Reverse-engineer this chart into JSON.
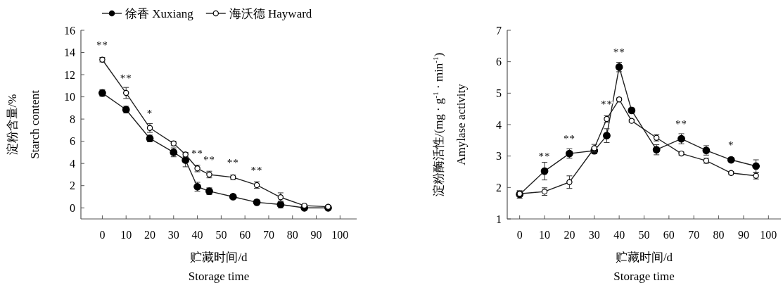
{
  "chart_data": [
    {
      "type": "line",
      "xlabel": "贮藏时间/d\nStorage time",
      "ylabel": "淀粉含量/%\nStarch content",
      "x": [
        0,
        10,
        20,
        30,
        35,
        40,
        45,
        55,
        65,
        75,
        85,
        95
      ],
      "xlim": [
        -9,
        107
      ],
      "xticks": [
        0,
        10,
        20,
        30,
        40,
        50,
        60,
        70,
        80,
        90,
        100
      ],
      "ylim": [
        -1,
        16
      ],
      "yticks": [
        0,
        2,
        4,
        6,
        8,
        10,
        12,
        14,
        16
      ],
      "marker": "circle",
      "line_style": "solid",
      "legend": "top",
      "series": [
        {
          "name": "徐香 Xuxiang",
          "color": "#000000",
          "values": [
            10.35,
            8.85,
            6.25,
            5.0,
            4.3,
            1.9,
            1.5,
            1.0,
            0.5,
            0.3,
            0.0,
            0.0
          ],
          "errors": [
            0.3,
            0.3,
            0.3,
            0.4,
            0.6,
            0.4,
            0.3,
            0.2,
            0.2,
            0.3,
            0.1,
            0.1
          ]
        },
        {
          "name": "海沃德 Hayward",
          "color": "#ffffff",
          "values": [
            13.35,
            10.35,
            7.2,
            5.8,
            4.8,
            3.55,
            3.0,
            2.75,
            2.05,
            0.95,
            0.2,
            0.1
          ],
          "errors": [
            0.2,
            0.5,
            0.4,
            0.2,
            0.2,
            0.3,
            0.3,
            0.2,
            0.3,
            0.4,
            0.1,
            0.1
          ]
        }
      ],
      "annotations": [
        {
          "text": "**",
          "x": 0,
          "y": 13.35
        },
        {
          "text": "**",
          "x": 10,
          "y": 10.35
        },
        {
          "text": "*",
          "x": 20,
          "y": 7.2
        },
        {
          "text": "**",
          "x": 40,
          "y": 3.55
        },
        {
          "text": "**",
          "x": 45,
          "y": 3.0
        },
        {
          "text": "**",
          "x": 55,
          "y": 2.75
        },
        {
          "text": "**",
          "x": 65,
          "y": 2.05
        }
      ]
    },
    {
      "type": "line",
      "xlabel": "贮藏时间/d\nStorage time",
      "ylabel": "淀粉酶活性/(mg · g$^{-1}$ · min$^{-1}$)\nAmylase activity",
      "x": [
        0,
        10,
        20,
        30,
        35,
        40,
        45,
        55,
        65,
        75,
        85,
        95
      ],
      "xlim": [
        -5,
        105
      ],
      "xticks": [
        0,
        10,
        20,
        30,
        40,
        50,
        60,
        70,
        80,
        90,
        100
      ],
      "ylim": [
        1,
        7
      ],
      "yticks": [
        1,
        2,
        3,
        4,
        5,
        6,
        7
      ],
      "marker": "circle",
      "line_style": "solid",
      "series": [
        {
          "color": "#000000",
          "values": [
            1.78,
            2.52,
            3.08,
            3.17,
            3.65,
            5.83,
            4.45,
            3.2,
            3.55,
            3.18,
            2.88,
            2.68
          ],
          "errors": [
            0.12,
            0.28,
            0.15,
            0.1,
            0.22,
            0.15,
            0.08,
            0.16,
            0.16,
            0.15,
            0.05,
            0.2
          ]
        },
        {
          "color": "#ffffff",
          "values": [
            1.8,
            1.87,
            2.17,
            3.25,
            4.18,
            4.8,
            4.12,
            3.58,
            3.08,
            2.85,
            2.46,
            2.37
          ],
          "errors": [
            0.08,
            0.12,
            0.2,
            0.12,
            0.1,
            0.05,
            0.05,
            0.1,
            0.05,
            0.08,
            0.05,
            0.1
          ]
        }
      ],
      "annotations": [
        {
          "text": "**",
          "x": 10,
          "y": 2.52
        },
        {
          "text": "**",
          "x": 20,
          "y": 3.08
        },
        {
          "text": "**",
          "x": 35,
          "y": 4.18
        },
        {
          "text": "**",
          "x": 40,
          "y": 5.83
        },
        {
          "text": "**",
          "x": 65,
          "y": 3.55
        },
        {
          "text": "*",
          "x": 85,
          "y": 2.88
        }
      ]
    }
  ]
}
